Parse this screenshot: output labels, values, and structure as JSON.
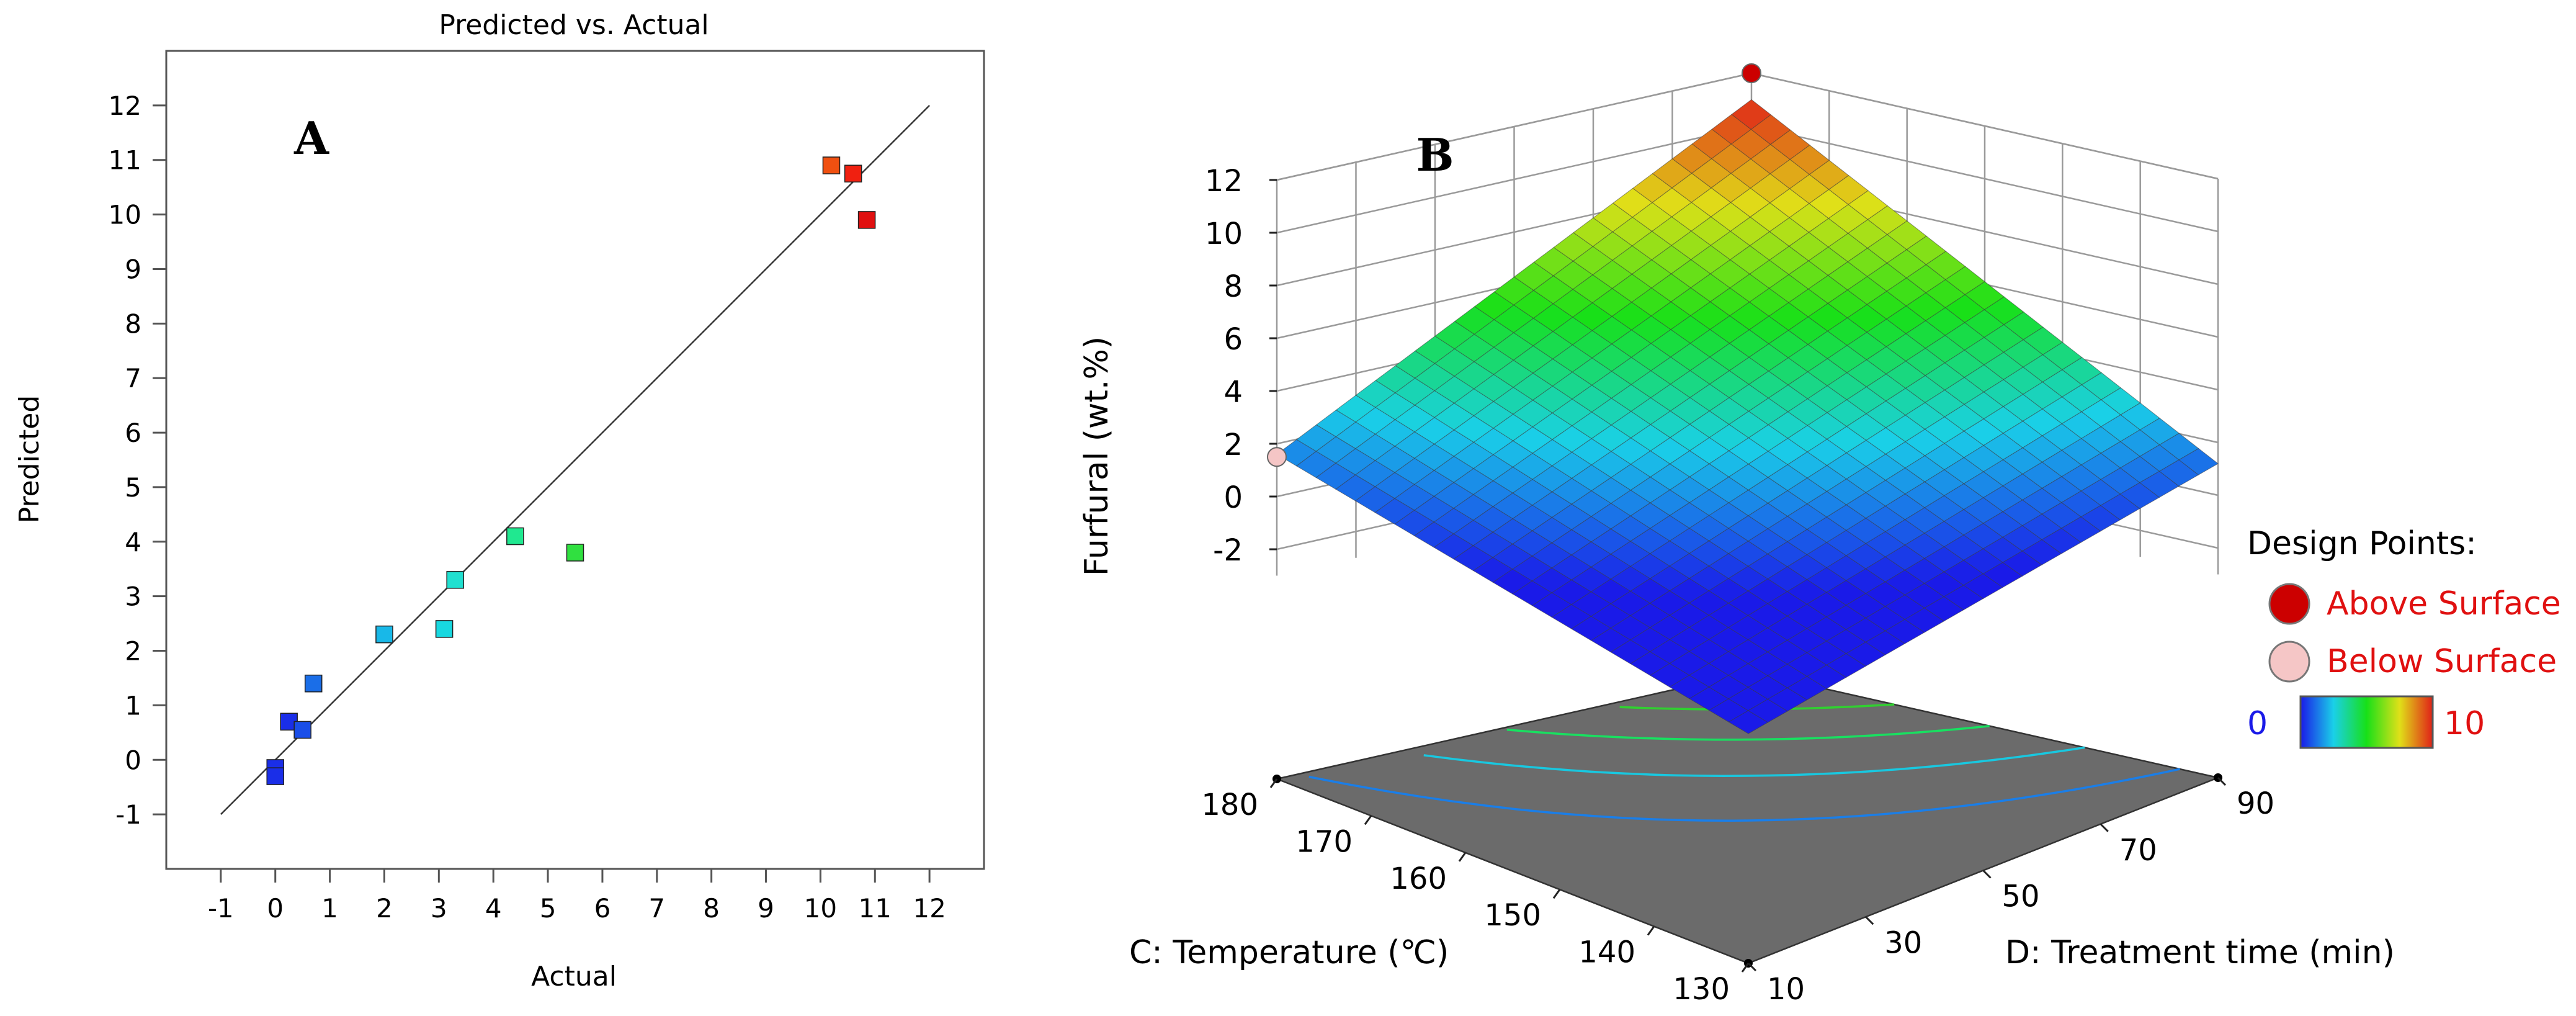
{
  "panel_a": {
    "letter": "A",
    "chart_data": {
      "type": "scatter",
      "title": "Predicted vs. Actual",
      "xlabel": "Actual",
      "ylabel": "Predicted",
      "xlim": [
        -2,
        13
      ],
      "ylim": [
        -2,
        13
      ],
      "xticks": [
        -1,
        0,
        1,
        2,
        3,
        4,
        5,
        6,
        7,
        8,
        9,
        10,
        11,
        12
      ],
      "yticks": [
        -1,
        0,
        1,
        2,
        3,
        4,
        5,
        6,
        7,
        8,
        9,
        10,
        11,
        12
      ],
      "reference_line": [
        [
          -1,
          -1
        ],
        [
          12,
          12
        ]
      ],
      "points": [
        {
          "x": 0.0,
          "y": -0.15,
          "color": "#1a2ee8"
        },
        {
          "x": 0.0,
          "y": -0.3,
          "color": "#1a2ee8"
        },
        {
          "x": 0.25,
          "y": 0.7,
          "color": "#1a2ee8"
        },
        {
          "x": 0.5,
          "y": 0.55,
          "color": "#1a4ee8"
        },
        {
          "x": 0.7,
          "y": 1.4,
          "color": "#1a6ee8"
        },
        {
          "x": 2.0,
          "y": 2.3,
          "color": "#18b8e8"
        },
        {
          "x": 3.1,
          "y": 2.4,
          "color": "#18d8e0"
        },
        {
          "x": 3.3,
          "y": 3.3,
          "color": "#20e0d0"
        },
        {
          "x": 4.4,
          "y": 4.1,
          "color": "#20e890"
        },
        {
          "x": 5.5,
          "y": 3.8,
          "color": "#30e040"
        },
        {
          "x": 10.2,
          "y": 10.9,
          "color": "#f05010"
        },
        {
          "x": 10.6,
          "y": 10.75,
          "color": "#f02010"
        },
        {
          "x": 10.85,
          "y": 9.9,
          "color": "#e01010"
        }
      ]
    }
  },
  "panel_b": {
    "letter": "B",
    "chart_data": {
      "type": "surface",
      "zlabel": "Furfural (wt.%)",
      "xlabel": "C: Temperature (℃)",
      "ylabel": "D: Treatment time (min)",
      "zticks": [
        -2,
        0,
        2,
        4,
        6,
        8,
        10,
        12
      ],
      "xticks": [
        130,
        140,
        150,
        160,
        170,
        180
      ],
      "yticks": [
        10,
        30,
        50,
        70,
        90
      ],
      "corner_values": [
        {
          "C": 180,
          "D": 10,
          "z": 1.6
        },
        {
          "C": 180,
          "D": 90,
          "z": 11.0
        },
        {
          "C": 130,
          "D": 90,
          "z": 1.2
        },
        {
          "C": 130,
          "D": 10,
          "z": -2.0
        }
      ],
      "design_points": [
        {
          "C": 180,
          "D": 90,
          "z": 12.0,
          "position": "above"
        },
        {
          "C": 180,
          "D": 10,
          "z": 1.5,
          "position": "below"
        }
      ],
      "colorbar": {
        "min": "0",
        "max": "10",
        "colors": [
          "#1a1ae8",
          "#1ad0e8",
          "#18e018",
          "#e0e018",
          "#e02018"
        ]
      }
    },
    "legend": {
      "title": "Design Points:",
      "above": "Above Surface",
      "below": "Below Surface",
      "above_color": "#cc0000",
      "below_color": "#f5c6c6",
      "min_label_color": "#1a1ae8",
      "max_label_color": "#e01010"
    }
  }
}
